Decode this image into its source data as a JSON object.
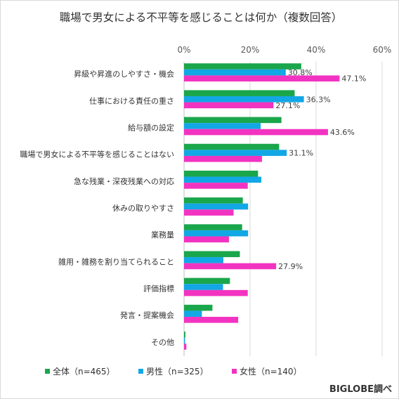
{
  "chart_data": {
    "type": "bar",
    "orientation": "horizontal",
    "title": "職場で男女による不平等を感じることは何か（複数回答）",
    "xlim": [
      0,
      60
    ],
    "xticks": [
      0,
      20,
      40,
      60
    ],
    "tick_suffix": "%",
    "grid": true,
    "legend_position": "bottom-left",
    "categories": [
      "昇級や昇進のしやすさ・機会",
      "仕事における責任の重さ",
      "給与額の設定",
      "職場で男女による不平等を感じることはない",
      "急な残業・深夜残業への対応",
      "休みの取りやすさ",
      "業務量",
      "雑用・雑務を割り当てられること",
      "評価指標",
      "発言・提案機会",
      "その他"
    ],
    "series": [
      {
        "name": "全体（n=465）",
        "color": "#1aa64b",
        "values": [
          35.5,
          33.5,
          29.5,
          28.8,
          22.4,
          17.8,
          17.6,
          16.9,
          13.9,
          8.6,
          0.4
        ]
      },
      {
        "name": "男性（n=325）",
        "color": "#12a7e5",
        "values": [
          30.8,
          36.3,
          23.2,
          31.1,
          23.4,
          19.4,
          19.4,
          11.9,
          11.8,
          5.4,
          0.3
        ]
      },
      {
        "name": "女性（n=140）",
        "color": "#f233c1",
        "values": [
          47.1,
          27.1,
          43.6,
          23.6,
          19.3,
          15.0,
          13.6,
          27.9,
          19.3,
          16.4,
          0.7
        ]
      }
    ],
    "data_labels": [
      {
        "series": 1,
        "index": 0,
        "text": "30.8%"
      },
      {
        "series": 2,
        "index": 0,
        "text": "47.1%"
      },
      {
        "series": 1,
        "index": 1,
        "text": "36.3%"
      },
      {
        "series": 2,
        "index": 1,
        "text": "27.1%"
      },
      {
        "series": 2,
        "index": 2,
        "text": "43.6%"
      },
      {
        "series": 1,
        "index": 3,
        "text": "31.1%"
      },
      {
        "series": 2,
        "index": 7,
        "text": "27.9%"
      }
    ]
  },
  "credit": "BIGLOBE調べ"
}
